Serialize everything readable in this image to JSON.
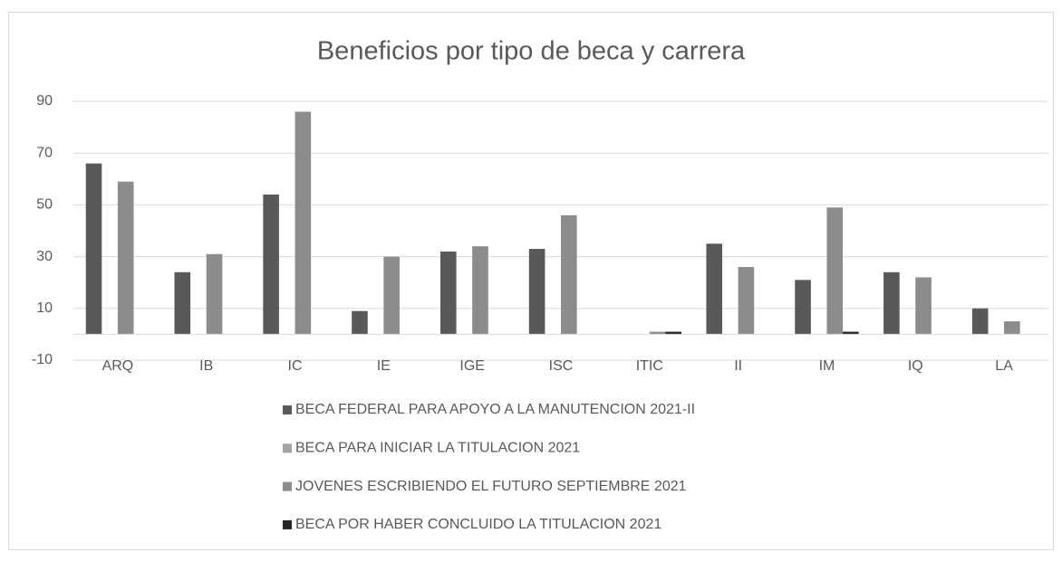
{
  "chart_data": {
    "type": "bar",
    "title": "Beneficios por tipo de beca y carrera",
    "categories": [
      "ARQ",
      "IB",
      "IC",
      "IE",
      "IGE",
      "ISC",
      "ITIC",
      "II",
      "IM",
      "IQ",
      "LA"
    ],
    "series": [
      {
        "name": "BECA FEDERAL PARA APOYO A LA MANUTENCION 2021-II",
        "color": "#595959",
        "values": [
          66,
          24,
          54,
          9,
          32,
          33,
          0,
          35,
          21,
          24,
          10
        ]
      },
      {
        "name": "BECA PARA INICIAR LA TITULACION 2021",
        "color": "#a5a5a5",
        "values": [
          0,
          0,
          0,
          0,
          0,
          0,
          0,
          0,
          0,
          0,
          0
        ]
      },
      {
        "name": "JOVENES ESCRIBIENDO EL FUTURO SEPTIEMBRE 2021",
        "color": "#8c8c8c",
        "values": [
          59,
          31,
          86,
          30,
          34,
          46,
          1,
          26,
          49,
          22,
          5
        ]
      },
      {
        "name": "BECA POR HABER CONCLUIDO LA TITULACION 2021",
        "color": "#262626",
        "values": [
          0,
          0,
          0,
          0,
          0,
          0,
          1,
          0,
          1,
          0,
          0
        ]
      }
    ],
    "ylim": [
      -10,
      90
    ],
    "yticks": [
      -10,
      10,
      30,
      50,
      70,
      90
    ],
    "grid": true,
    "legend": "bottom"
  }
}
